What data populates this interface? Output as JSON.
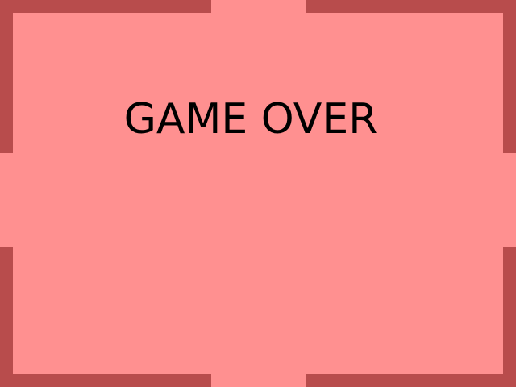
{
  "screen": {
    "message": "GAME OVER"
  },
  "colors": {
    "background": "#ff9090",
    "wall": "#b84c4c",
    "text": "#000000"
  }
}
